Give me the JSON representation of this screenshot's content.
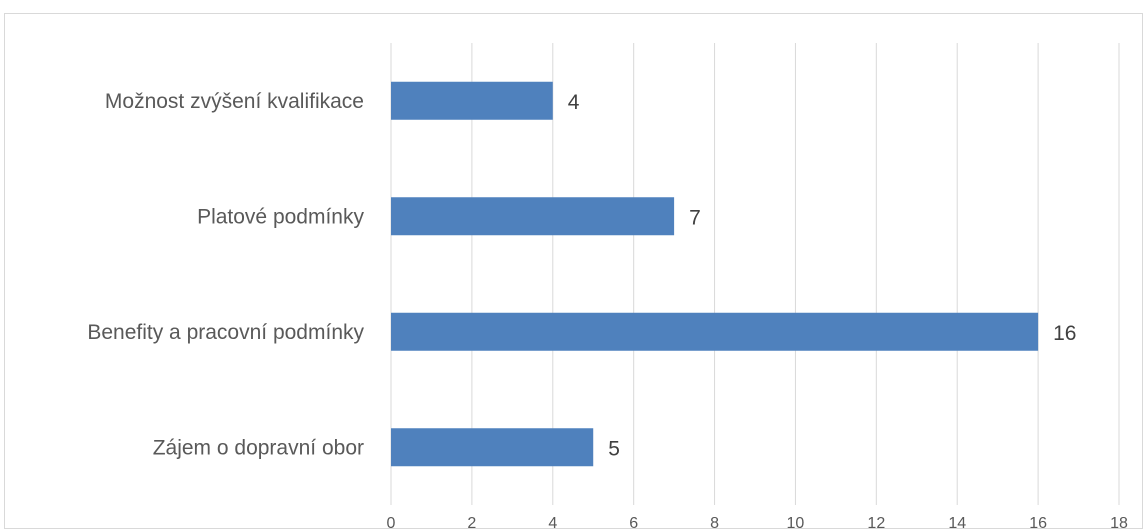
{
  "chart_data": {
    "type": "bar",
    "orientation": "horizontal",
    "title": "",
    "xlabel": "",
    "ylabel": "",
    "categories": [
      "Možnost zvýšení kvalifikace",
      "Platové podmínky",
      "Benefity a pracovní podmínky",
      "Zájem o dopravní obor"
    ],
    "values": [
      4,
      7,
      16,
      5
    ],
    "xlim": [
      0,
      18
    ],
    "x_ticks": [
      "0",
      "2",
      "4",
      "6",
      "8",
      "10",
      "12",
      "14",
      "16",
      "18"
    ],
    "data_labels": [
      "4",
      "7",
      "16",
      "5"
    ],
    "grid": "vertical",
    "legend": "none",
    "bar_color": "#4f81bd",
    "grid_color": "#d9d9d9"
  }
}
